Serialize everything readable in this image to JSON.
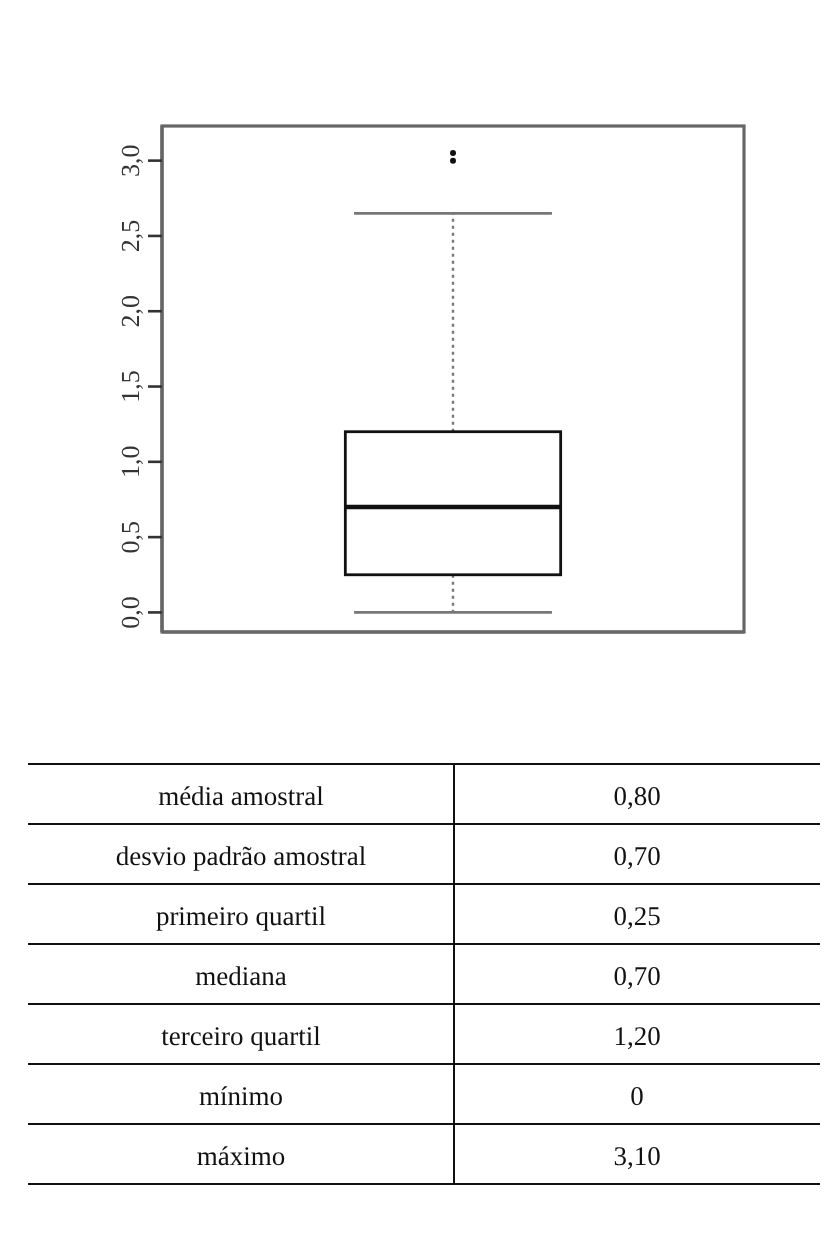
{
  "chart_data": [
    {
      "type": "box",
      "categories": [
        null
      ],
      "boxes": [
        {
          "low": 0,
          "q1": 0.25,
          "median": 0.7,
          "q3": 1.2,
          "high": 2.65,
          "outliers": [
            3.0,
            3.05
          ]
        }
      ],
      "ylim": [
        -0.13,
        3.23
      ],
      "yticks": [
        {
          "value": 0,
          "label": "0,0"
        },
        {
          "value": 0.5,
          "label": "0,5"
        },
        {
          "value": 1,
          "label": "1,0"
        },
        {
          "value": 1.5,
          "label": "1,5"
        },
        {
          "value": 2,
          "label": "2,0"
        },
        {
          "value": 2.5,
          "label": "2,5"
        },
        {
          "value": 3,
          "label": "3,0"
        }
      ],
      "tick_labels": "y",
      "line_style": "dotted"
    },
    {
      "type": "other",
      "categories": [
        "média amostral",
        "desvio padrão amostral",
        "primeiro quartil",
        "mediana",
        "terceiro quartil",
        "mínimo",
        "máximo"
      ],
      "values": [
        0.8,
        0.7,
        0.25,
        0.7,
        1.2,
        0,
        3.1
      ],
      "value_labels": [
        "0,80",
        "0,70",
        "0,25",
        "0,70",
        "1,20",
        "0",
        "3,10"
      ]
    }
  ]
}
